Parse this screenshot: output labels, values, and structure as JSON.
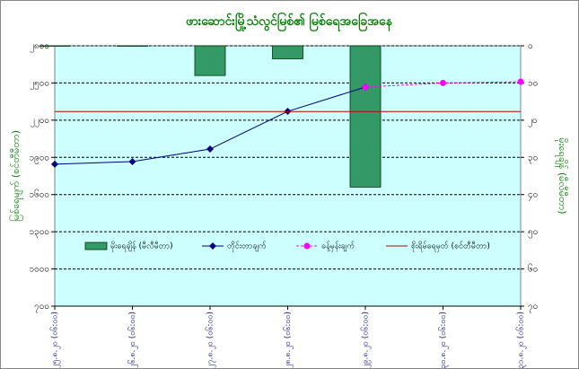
{
  "chart_data": {
    "type": "combo",
    "title": "ဖားဆောင်းမြို့သံလွင်မြစ်၏ မြစ်ရေအခြေအနေ",
    "y_label": "မြစ်ရေမျက် (စင်တီမီတာ)",
    "y2_label": "မိုးရေချိန် (မီလီမီတာ)",
    "categories": [
      "၂၅.၈.၂၀ (၀၆:၀၀)",
      "၂၆.၈.၂၀ (၀၆:၀၀)",
      "၂၇.၈.၂၀ (၀၆:၀၀)",
      "၂၈.၈.၂၀ (၀၆:၀၀)",
      "၂၉.၈.၂၀ (၀၆:၀၀)",
      "၃၀.၈.၂၀ (၀၆:၀၀)",
      "၃၁.၈.၂၀ (၀၆:၀၀)"
    ],
    "series": [
      {
        "name": "မိုးရေချိန် (မီလီမီတာ)",
        "kind": "bar",
        "axis": "y2",
        "color": "#339966",
        "values": [
          0,
          0,
          8,
          3.5,
          38,
          null,
          null
        ]
      },
      {
        "name": "တိုင်းတာချက်",
        "kind": "line",
        "color": "#000080",
        "marker": "diamond",
        "values": [
          1845,
          1866,
          1967,
          2271,
          2467,
          null,
          null
        ]
      },
      {
        "name": "ခန့်မှန်းချက်",
        "kind": "line",
        "dashed": true,
        "color": "#ff00ff",
        "marker": "circle",
        "values": [
          null,
          null,
          null,
          null,
          2467,
          2500,
          2510
        ]
      },
      {
        "name": "စိုးရိမ်ရေမှတ် (စင်တီမီတာ)",
        "kind": "line",
        "color": "#c00000",
        "values": [
          2270,
          2270,
          2270,
          2270,
          2270,
          2270,
          2270
        ]
      }
    ],
    "ylim": [
      700,
      2800
    ],
    "yticks": [
      {
        "value": 700,
        "label": "၇၀၀"
      },
      {
        "value": 1000,
        "label": "၁၀၀၀"
      },
      {
        "value": 1300,
        "label": "၁၃၀၀"
      },
      {
        "value": 1600,
        "label": "၁၆၀၀"
      },
      {
        "value": 1900,
        "label": "၁၉၀၀"
      },
      {
        "value": 2200,
        "label": "၂၂၀၀"
      },
      {
        "value": 2500,
        "label": "၂၅၀၀"
      },
      {
        "value": 2800,
        "label": "၂၈၀၀"
      }
    ],
    "y2lim": [
      0,
      70
    ],
    "y2_reversed": true,
    "y2ticks": [
      {
        "value": 0,
        "label": "၀"
      },
      {
        "value": 10,
        "label": "၁၀"
      },
      {
        "value": 20,
        "label": "၂၀"
      },
      {
        "value": 30,
        "label": "၃၀"
      },
      {
        "value": 40,
        "label": "၄၀"
      },
      {
        "value": 50,
        "label": "၅၀"
      },
      {
        "value": 60,
        "label": "၆၀"
      },
      {
        "value": 70,
        "label": "၇၀"
      }
    ],
    "grid": true
  }
}
